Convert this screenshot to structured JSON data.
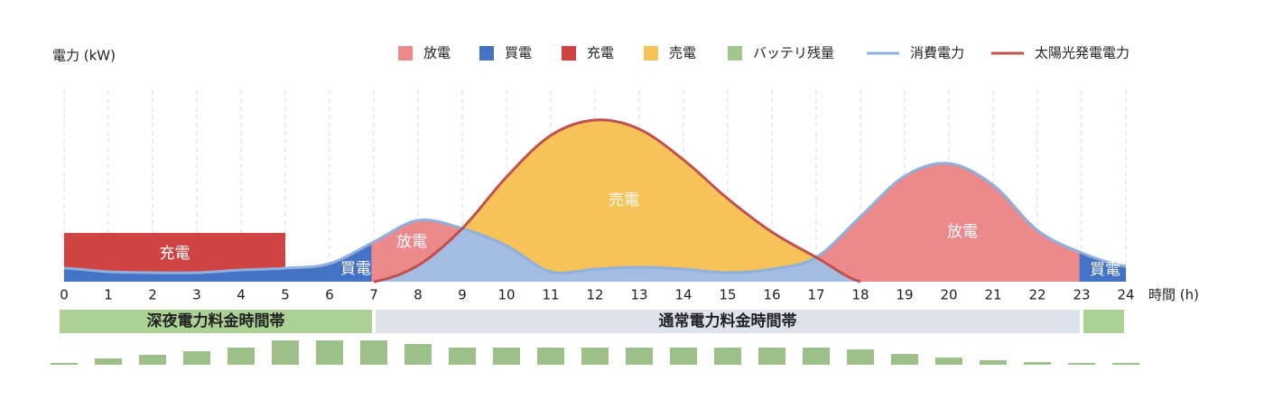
{
  "chart_data": {
    "type": "area",
    "y_label": "電力 (kW)",
    "x_label": "時間 (h)",
    "x": [
      0,
      1,
      2,
      3,
      4,
      5,
      6,
      7,
      8,
      9,
      10,
      11,
      12,
      13,
      14,
      15,
      16,
      17,
      18,
      19,
      20,
      21,
      22,
      23,
      24
    ],
    "xlim": [
      0,
      24
    ],
    "xticks": [
      0,
      1,
      2,
      3,
      4,
      5,
      6,
      7,
      8,
      9,
      10,
      11,
      12,
      13,
      14,
      15,
      16,
      17,
      18,
      19,
      20,
      21,
      22,
      23,
      24
    ],
    "ylim": [
      0,
      10
    ],
    "grid": true,
    "legend": [
      {
        "name": "放電",
        "color": "#ec8a8b"
      },
      {
        "name": "買電",
        "color": "#4472c4"
      },
      {
        "name": "充電",
        "color": "#cf4343"
      },
      {
        "name": "売電",
        "color": "#f7c257"
      },
      {
        "name": "バッテリ残量",
        "color": "#a3c48e"
      }
    ],
    "series": [
      {
        "name": "消費電力",
        "color": "#8fb0dd",
        "values": [
          0.75,
          0.55,
          0.5,
          0.5,
          0.65,
          0.75,
          1.0,
          2.2,
          3.4,
          2.95,
          2.0,
          0.55,
          0.7,
          0.8,
          0.7,
          0.5,
          0.7,
          1.35,
          3.6,
          5.85,
          6.55,
          5.35,
          2.85,
          1.6,
          0.85
        ]
      },
      {
        "name": "太陽光発電電力",
        "color": "#c0504d",
        "values": [
          null,
          null,
          null,
          null,
          null,
          null,
          null,
          0,
          0.9,
          2.95,
          5.8,
          8.1,
          8.95,
          8.45,
          6.75,
          4.6,
          2.75,
          1.35,
          0,
          null,
          null,
          null,
          null,
          null,
          null
        ]
      }
    ],
    "charge": {
      "label": "充電",
      "from": 0,
      "to": 5,
      "value": 2.7
    },
    "annotations": [
      "買電",
      "放電",
      "売電",
      "放電",
      "買電"
    ],
    "bands": [
      {
        "label": "深夜電力料金時間帯",
        "from": 0,
        "to": 7,
        "color": "#acd195"
      },
      {
        "label": "通常電力料金時間帯",
        "from": 7,
        "to": 23,
        "color": "#dde3ec"
      },
      {
        "from": 23,
        "to": 24,
        "color": "#acd195"
      }
    ],
    "battery": {
      "color": "#9dc08a",
      "ylim": [
        0,
        30
      ],
      "values": [
        2,
        7,
        11,
        15,
        19,
        27,
        27,
        27,
        23,
        19,
        19,
        19,
        19,
        19,
        19,
        19,
        19,
        19,
        17,
        12,
        8,
        5,
        3,
        2,
        2
      ]
    }
  }
}
